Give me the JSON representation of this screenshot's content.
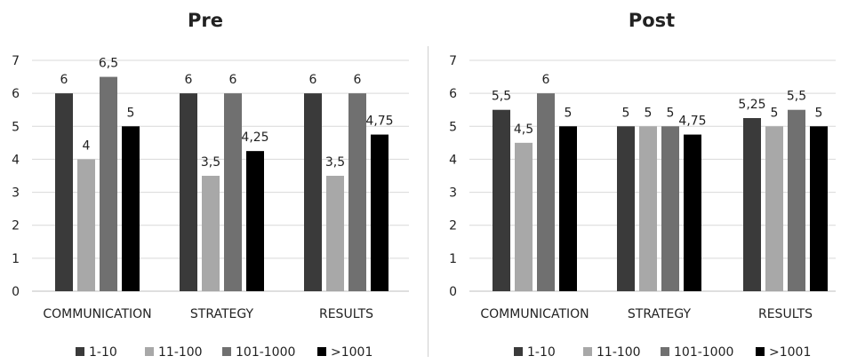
{
  "colors": {
    "series": [
      "#3a3a3a",
      "#a8a8a8",
      "#707070",
      "#000000"
    ],
    "grid": "#d9d9d9",
    "axis": "#bfbfbf",
    "text": "#222222"
  },
  "chart_data": [
    {
      "type": "bar",
      "title": "Pre",
      "categories": [
        "COMMUNICATION",
        "STRATEGY",
        "RESULTS"
      ],
      "series": [
        {
          "name": "1-10",
          "values": [
            6,
            6,
            6
          ],
          "labels": [
            "6",
            "6",
            "6"
          ]
        },
        {
          "name": "11-100",
          "values": [
            4,
            3.5,
            3.5
          ],
          "labels": [
            "4",
            "3,5",
            "3,5"
          ]
        },
        {
          "name": "101-1000",
          "values": [
            6.5,
            6,
            6
          ],
          "labels": [
            "6,5",
            "6",
            "6"
          ]
        },
        {
          "name": ">1001",
          "values": [
            5,
            4.25,
            4.75
          ],
          "labels": [
            "5",
            "4,25",
            "4,75"
          ]
        }
      ],
      "yticks": [
        "0",
        "1",
        "2",
        "3",
        "4",
        "5",
        "6",
        "7"
      ],
      "ylim": [
        0,
        7
      ],
      "grid": true,
      "legend": "bottom"
    },
    {
      "type": "bar",
      "title": "Post",
      "categories": [
        "COMMUNICATION",
        "STRATEGY",
        "RESULTS"
      ],
      "series": [
        {
          "name": "1-10",
          "values": [
            5.5,
            5,
            5.25
          ],
          "labels": [
            "5,5",
            "5",
            "5,25"
          ]
        },
        {
          "name": "11-100",
          "values": [
            4.5,
            5,
            5
          ],
          "labels": [
            "4,5",
            "5",
            "5"
          ]
        },
        {
          "name": "101-1000",
          "values": [
            6,
            5,
            5.5
          ],
          "labels": [
            "6",
            "5",
            "5,5"
          ]
        },
        {
          "name": ">1001",
          "values": [
            5,
            4.75,
            5
          ],
          "labels": [
            "5",
            "4,75",
            "5"
          ]
        }
      ],
      "yticks": [
        "0",
        "1",
        "2",
        "3",
        "4",
        "5",
        "6",
        "7"
      ],
      "ylim": [
        0,
        7
      ],
      "grid": true,
      "legend": "bottom"
    }
  ]
}
